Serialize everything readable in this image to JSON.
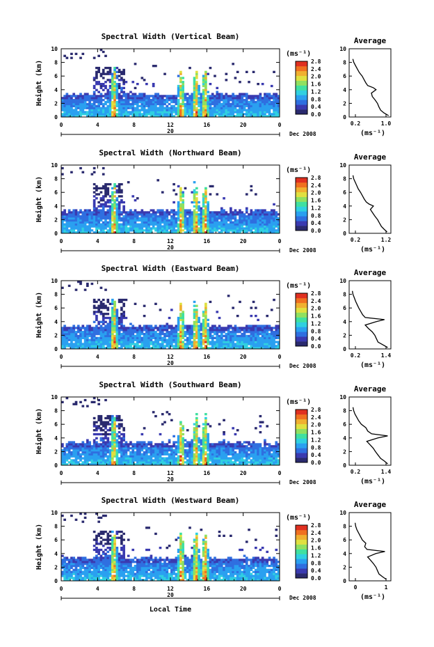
{
  "figure": {
    "x_axis_title": "Local Time",
    "date_label": "Dec 2008",
    "day_label": "20",
    "y_axis_title": "Height (km)",
    "colorbar_unit": "(ms⁻¹)",
    "profile_title": "Average",
    "profile_unit": "(ms⁻¹)"
  },
  "colors": {
    "scale": [
      "#2a2a6e",
      "#3a3ab0",
      "#2f6fe0",
      "#2aa0f0",
      "#30d0e0",
      "#40e0a0",
      "#90e060",
      "#e0e040",
      "#f0b030",
      "#f07020",
      "#e03020"
    ],
    "background": "#ffffff"
  },
  "chart_data": [
    {
      "type": "heatmap",
      "title": "Spectral Width (Vertical Beam)",
      "xlabel": "Local Time",
      "ylabel": "Height (km)",
      "xlim": [
        0,
        24
      ],
      "ylim": [
        0,
        10
      ],
      "x_ticks": [
        "0",
        "4",
        "8",
        "12",
        "16",
        "20",
        "0"
      ],
      "y_ticks": [
        "0",
        "2",
        "4",
        "6",
        "8",
        "10"
      ],
      "colorbar": {
        "unit": "(ms⁻¹)",
        "range": [
          0.0,
          2.8
        ],
        "tick_labels": [
          "2.8",
          "2.4",
          "2.0",
          "1.6",
          "1.2",
          "0.8",
          "0.4",
          "0.0"
        ]
      },
      "convective_events_hours": [
        5.8,
        13.2,
        14.8,
        15.8
      ],
      "profile": {
        "title": "Average",
        "xlabel": "(ms⁻¹)",
        "ylabel": "Height (km)",
        "xlim": [
          0.1,
          1.0
        ],
        "ylim": [
          0,
          10
        ],
        "x_tick_labels": [
          "0.2",
          "1.0"
        ],
        "y_ticks": [
          "0",
          "2",
          "4",
          "6",
          "8",
          "10"
        ],
        "height_km": [
          0.2,
          0.6,
          1.0,
          1.5,
          2.0,
          2.5,
          3.0,
          3.5,
          4.0,
          4.3,
          4.6,
          5.0,
          5.5,
          6.0,
          6.5,
          7.0,
          7.5,
          8.0,
          8.5
        ],
        "width_ms": [
          0.95,
          0.85,
          0.78,
          0.74,
          0.71,
          0.66,
          0.6,
          0.58,
          0.68,
          0.62,
          0.5,
          0.46,
          0.42,
          0.38,
          0.32,
          0.28,
          0.24,
          0.2,
          0.18
        ]
      }
    },
    {
      "type": "heatmap",
      "title": "Spectral Width (Northward Beam)",
      "xlabel": "Local Time",
      "ylabel": "Height (km)",
      "xlim": [
        0,
        24
      ],
      "ylim": [
        0,
        10
      ],
      "x_ticks": [
        "0",
        "4",
        "8",
        "12",
        "16",
        "20",
        "0"
      ],
      "y_ticks": [
        "0",
        "2",
        "4",
        "6",
        "8",
        "10"
      ],
      "colorbar": {
        "unit": "(ms⁻¹)",
        "range": [
          0.0,
          2.8
        ],
        "tick_labels": [
          "2.8",
          "2.4",
          "2.0",
          "1.6",
          "1.2",
          "0.8",
          "0.4",
          "0.0"
        ]
      },
      "convective_events_hours": [
        5.8,
        13.2,
        14.8,
        15.8
      ],
      "profile": {
        "title": "Average",
        "xlabel": "(ms⁻¹)",
        "ylabel": "Height (km)",
        "xlim": [
          0.1,
          1.2
        ],
        "ylim": [
          0,
          10
        ],
        "x_tick_labels": [
          "0.2",
          "1.2"
        ],
        "y_ticks": [
          "0",
          "2",
          "4",
          "6",
          "8",
          "10"
        ],
        "height_km": [
          0.2,
          0.6,
          1.0,
          1.5,
          2.0,
          2.5,
          3.0,
          3.5,
          4.0,
          4.3,
          4.6,
          5.0,
          5.5,
          6.0,
          6.5,
          7.0,
          7.5,
          8.0,
          8.5
        ],
        "width_ms": [
          1.1,
          1.02,
          0.95,
          0.9,
          0.85,
          0.78,
          0.72,
          0.66,
          0.74,
          0.62,
          0.55,
          0.5,
          0.45,
          0.4,
          0.34,
          0.3,
          0.26,
          0.22,
          0.2
        ]
      }
    },
    {
      "type": "heatmap",
      "title": "Spectral Width (Eastward Beam)",
      "xlabel": "Local Time",
      "ylabel": "Height (km)",
      "xlim": [
        0,
        24
      ],
      "ylim": [
        0,
        10
      ],
      "x_ticks": [
        "0",
        "4",
        "8",
        "12",
        "16",
        "20",
        "0"
      ],
      "y_ticks": [
        "0",
        "2",
        "4",
        "6",
        "8",
        "10"
      ],
      "colorbar": {
        "unit": "(ms⁻¹)",
        "range": [
          0.0,
          2.8
        ],
        "tick_labels": [
          "2.8",
          "2.4",
          "2.0",
          "1.6",
          "1.2",
          "0.8",
          "0.4",
          "0.0"
        ]
      },
      "convective_events_hours": [
        5.8,
        13.2,
        14.8,
        15.8
      ],
      "profile": {
        "title": "Average",
        "xlabel": "(ms⁻¹)",
        "ylabel": "Height (km)",
        "xlim": [
          0.1,
          1.4
        ],
        "ylim": [
          0,
          10
        ],
        "x_tick_labels": [
          "0.2",
          "1.4"
        ],
        "y_ticks": [
          "0",
          "2",
          "4",
          "6",
          "8",
          "10"
        ],
        "height_km": [
          0.2,
          0.6,
          1.0,
          1.5,
          2.0,
          2.5,
          3.0,
          3.5,
          4.0,
          4.3,
          4.6,
          5.0,
          5.5,
          6.0,
          6.5,
          7.0,
          7.5,
          8.0,
          8.5
        ],
        "width_ms": [
          1.3,
          1.15,
          1.0,
          0.95,
          0.9,
          0.82,
          0.7,
          0.6,
          0.95,
          1.2,
          0.6,
          0.52,
          0.46,
          0.4,
          0.35,
          0.3,
          0.26,
          0.22,
          0.2
        ]
      }
    },
    {
      "type": "heatmap",
      "title": "Spectral Width (Southward Beam)",
      "xlabel": "Local Time",
      "ylabel": "Height (km)",
      "xlim": [
        0,
        24
      ],
      "ylim": [
        0,
        10
      ],
      "x_ticks": [
        "0",
        "4",
        "8",
        "12",
        "16",
        "20",
        "0"
      ],
      "y_ticks": [
        "0",
        "2",
        "4",
        "6",
        "8",
        "10"
      ],
      "colorbar": {
        "unit": "(ms⁻¹)",
        "range": [
          0.0,
          2.8
        ],
        "tick_labels": [
          "2.8",
          "2.4",
          "2.0",
          "1.6",
          "1.2",
          "0.8",
          "0.4",
          "0.0"
        ]
      },
      "convective_events_hours": [
        5.8,
        13.2,
        14.8,
        15.8
      ],
      "profile": {
        "title": "Average",
        "xlabel": "(ms⁻¹)",
        "ylabel": "Height (km)",
        "xlim": [
          0.1,
          1.4
        ],
        "ylim": [
          0,
          10
        ],
        "x_tick_labels": [
          "0.2",
          "1.4"
        ],
        "y_ticks": [
          "0",
          "2",
          "4",
          "6",
          "8",
          "10"
        ],
        "height_km": [
          0.2,
          0.6,
          1.0,
          1.5,
          2.0,
          2.5,
          3.0,
          3.5,
          4.0,
          4.3,
          4.6,
          5.0,
          5.5,
          6.0,
          6.5,
          7.0,
          7.5,
          8.0,
          8.5
        ],
        "width_ms": [
          1.3,
          1.2,
          1.08,
          1.0,
          0.92,
          0.85,
          0.75,
          0.65,
          1.0,
          1.3,
          0.8,
          0.68,
          0.62,
          0.48,
          0.4,
          0.34,
          0.28,
          0.24,
          0.22
        ]
      }
    },
    {
      "type": "heatmap",
      "title": "Spectral Width (Westward Beam)",
      "xlabel": "Local Time",
      "ylabel": "Height (km)",
      "xlim": [
        0,
        24
      ],
      "ylim": [
        0,
        10
      ],
      "x_ticks": [
        "0",
        "4",
        "8",
        "12",
        "16",
        "20",
        "0"
      ],
      "y_ticks": [
        "0",
        "2",
        "4",
        "6",
        "8",
        "10"
      ],
      "colorbar": {
        "unit": "(ms⁻¹)",
        "range": [
          0.0,
          2.8
        ],
        "tick_labels": [
          "2.8",
          "2.4",
          "2.0",
          "1.6",
          "1.2",
          "0.8",
          "0.4",
          "0.0"
        ]
      },
      "convective_events_hours": [
        5.8,
        13.2,
        14.8,
        15.8
      ],
      "profile": {
        "title": "Average",
        "xlabel": "(ms⁻¹)",
        "ylabel": "Height (km)",
        "xlim": [
          0,
          1.4
        ],
        "ylim": [
          0,
          10
        ],
        "x_tick_labels": [
          "0",
          "1"
        ],
        "y_ticks": [
          "0",
          "2",
          "4",
          "6",
          "8",
          "10"
        ],
        "height_km": [
          0.2,
          0.6,
          1.0,
          1.5,
          2.0,
          2.5,
          3.0,
          3.5,
          4.0,
          4.3,
          4.6,
          5.0,
          5.5,
          6.0,
          6.5,
          7.0,
          7.5,
          8.0,
          8.5
        ],
        "width_ms": [
          1.25,
          1.12,
          1.0,
          0.95,
          0.9,
          0.82,
          0.72,
          0.62,
          0.9,
          1.2,
          0.6,
          0.52,
          0.56,
          0.44,
          0.38,
          0.32,
          0.26,
          0.22,
          0.2
        ]
      }
    }
  ]
}
